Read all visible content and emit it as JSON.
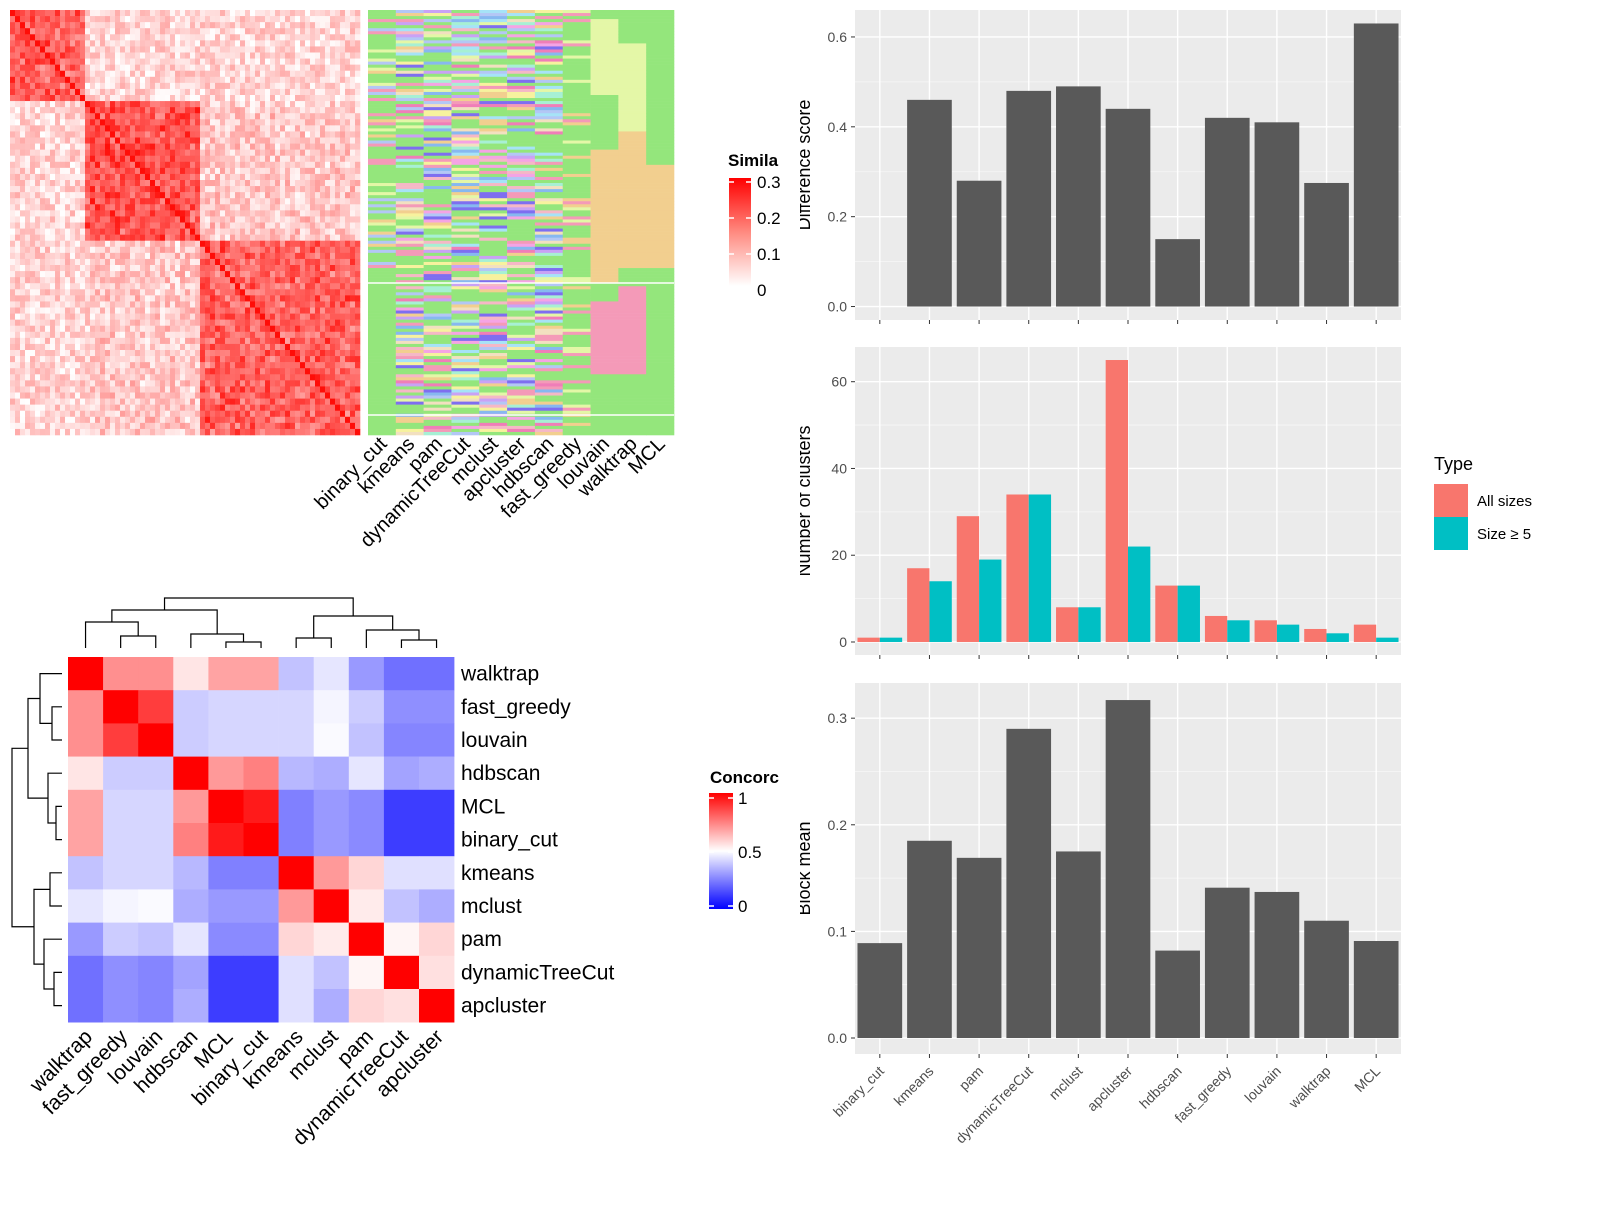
{
  "similarity_heatmap": {
    "legend_title": "Simila",
    "legend_ticks": [
      "0.3",
      "0.2",
      "0.1",
      "0"
    ],
    "methods": [
      "binary_cut",
      "kmeans",
      "pam",
      "dynamicTreeCut",
      "mclust",
      "apcluster",
      "hdbscan",
      "fast_greedy",
      "louvain",
      "walktrap",
      "MCL"
    ]
  },
  "concordance_heatmap": {
    "legend_title": "Concorc",
    "legend_ticks": [
      "1",
      "0.5",
      "0"
    ],
    "order": [
      "walktrap",
      "fast_greedy",
      "louvain",
      "hdbscan",
      "MCL",
      "binary_cut",
      "kmeans",
      "mclust",
      "pam",
      "dynamicTreeCut",
      "apcluster"
    ],
    "matrix": [
      [
        1.0,
        0.72,
        0.72,
        0.55,
        0.68,
        0.68,
        0.38,
        0.45,
        0.3,
        0.22,
        0.22
      ],
      [
        0.72,
        1.0,
        0.88,
        0.4,
        0.42,
        0.42,
        0.42,
        0.48,
        0.4,
        0.28,
        0.28
      ],
      [
        0.72,
        0.88,
        1.0,
        0.4,
        0.42,
        0.42,
        0.42,
        0.49,
        0.38,
        0.26,
        0.26
      ],
      [
        0.55,
        0.4,
        0.4,
        1.0,
        0.7,
        0.75,
        0.36,
        0.34,
        0.45,
        0.32,
        0.34
      ],
      [
        0.68,
        0.42,
        0.42,
        0.7,
        1.0,
        0.95,
        0.25,
        0.3,
        0.27,
        0.12,
        0.12
      ],
      [
        0.68,
        0.42,
        0.42,
        0.75,
        0.95,
        1.0,
        0.25,
        0.3,
        0.27,
        0.12,
        0.12
      ],
      [
        0.38,
        0.42,
        0.42,
        0.36,
        0.25,
        0.25,
        1.0,
        0.7,
        0.58,
        0.44,
        0.44
      ],
      [
        0.45,
        0.48,
        0.49,
        0.34,
        0.3,
        0.3,
        0.7,
        1.0,
        0.54,
        0.38,
        0.34
      ],
      [
        0.3,
        0.4,
        0.38,
        0.45,
        0.27,
        0.27,
        0.58,
        0.54,
        1.0,
        0.52,
        0.58
      ],
      [
        0.22,
        0.28,
        0.26,
        0.32,
        0.12,
        0.12,
        0.44,
        0.38,
        0.52,
        1.0,
        0.56
      ],
      [
        0.22,
        0.28,
        0.26,
        0.34,
        0.12,
        0.12,
        0.44,
        0.34,
        0.58,
        0.56,
        1.0
      ]
    ]
  },
  "chart_data": [
    {
      "type": "bar",
      "categories": [
        "binary_cut",
        "kmeans",
        "pam",
        "dynamicTreeCut",
        "mclust",
        "apcluster",
        "hdbscan",
        "fast_greedy",
        "louvain",
        "walktrap",
        "MCL"
      ],
      "values": [
        0,
        0.46,
        0.28,
        0.48,
        0.49,
        0.44,
        0.15,
        0.42,
        0.41,
        0.275,
        0.63
      ],
      "ylabel": "Difference score",
      "ylim": [
        -0.03,
        0.66
      ],
      "yticks": [
        "0.0",
        "0.2",
        "0.4",
        "0.6"
      ],
      "bar_color": "#595959",
      "grid": true
    },
    {
      "type": "bar",
      "categories": [
        "binary_cut",
        "kmeans",
        "pam",
        "dynamicTreeCut",
        "mclust",
        "apcluster",
        "hdbscan",
        "fast_greedy",
        "louvain",
        "walktrap",
        "MCL"
      ],
      "series": [
        {
          "name": "All sizes",
          "color": "#F8766D",
          "values": [
            1,
            17,
            29,
            34,
            8,
            65,
            13,
            6,
            5,
            3,
            4
          ]
        },
        {
          "name": "Size ≥ 5",
          "color": "#00BFC4",
          "values": [
            1,
            14,
            19,
            34,
            8,
            22,
            13,
            5,
            4,
            2,
            1
          ]
        }
      ],
      "ylabel": "Number of clusters",
      "ylim": [
        -3,
        68
      ],
      "yticks": [
        "0",
        "20",
        "40",
        "60"
      ],
      "legend_title": "Type",
      "legend_position": "right",
      "grid": true
    },
    {
      "type": "bar",
      "categories": [
        "binary_cut",
        "kmeans",
        "pam",
        "dynamicTreeCut",
        "mclust",
        "apcluster",
        "hdbscan",
        "fast_greedy",
        "louvain",
        "walktrap",
        "MCL"
      ],
      "values": [
        0.089,
        0.185,
        0.169,
        0.29,
        0.175,
        0.317,
        0.082,
        0.141,
        0.137,
        0.11,
        0.091
      ],
      "ylabel": "Block mean",
      "ylim": [
        -0.015,
        0.333
      ],
      "yticks": [
        "0.0",
        "0.1",
        "0.2",
        "0.3"
      ],
      "bar_color": "#595959",
      "grid": true
    }
  ]
}
